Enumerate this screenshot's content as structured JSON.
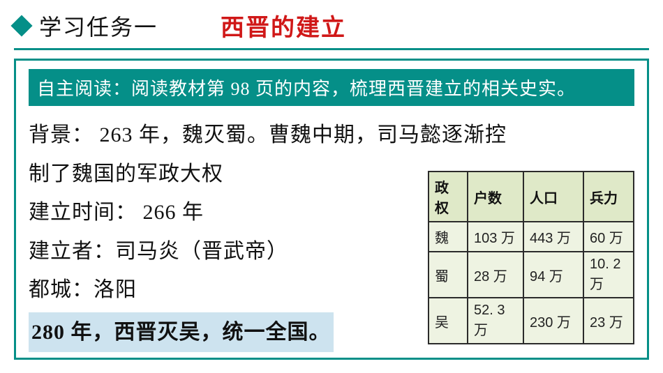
{
  "header": {
    "task_label": "学习任务一",
    "main_title": "西晋的建立"
  },
  "reading_bar": "自主阅读：阅读教材第 98 页的内容，梳理西晋建立的相关史实。",
  "body": {
    "line1": "背景： 263 年，魏灭蜀。曹魏中期，司马懿逐渐控",
    "line2": "制了魏国的军政大权",
    "line3": "建立时间： 266 年",
    "line4": "建立者：司马炎（晋武帝）",
    "line5": "都城：洛阳",
    "highlight": "280 年，西晋灭吴，统一全国。"
  },
  "table": {
    "type": "table",
    "columns": [
      "政权",
      "户数",
      "人口",
      "兵力"
    ],
    "rows": [
      [
        "魏",
        "103 万",
        "443 万",
        "60 万"
      ],
      [
        "蜀",
        "28 万",
        "94 万",
        "10. 2 万"
      ],
      [
        "吴",
        "52. 3 万",
        "230 万",
        "23 万"
      ]
    ],
    "header_bg": "#dfe9c8",
    "cell_bg": "#eef3e2",
    "border_color": "#2b2b2b",
    "font_size": 20
  },
  "colors": {
    "accent": "#058f88",
    "title_red": "#d01818",
    "highlight_bg": "#cde3ef",
    "text": "#111111",
    "background": "#ffffff"
  }
}
